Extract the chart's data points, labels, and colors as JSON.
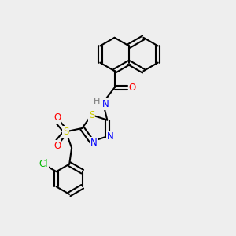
{
  "background_color": "#eeeeee",
  "bond_color": "#000000",
  "atom_colors": {
    "N": "#0000ff",
    "O": "#ff0000",
    "S_thiadiazole": "#cccc00",
    "S_sulfonyl": "#cccc00",
    "Cl": "#00bb00",
    "H": "#777777",
    "C": "#000000"
  },
  "bond_width": 1.5,
  "font_size": 8.5,
  "figsize": [
    3.0,
    3.0
  ],
  "dpi": 100
}
